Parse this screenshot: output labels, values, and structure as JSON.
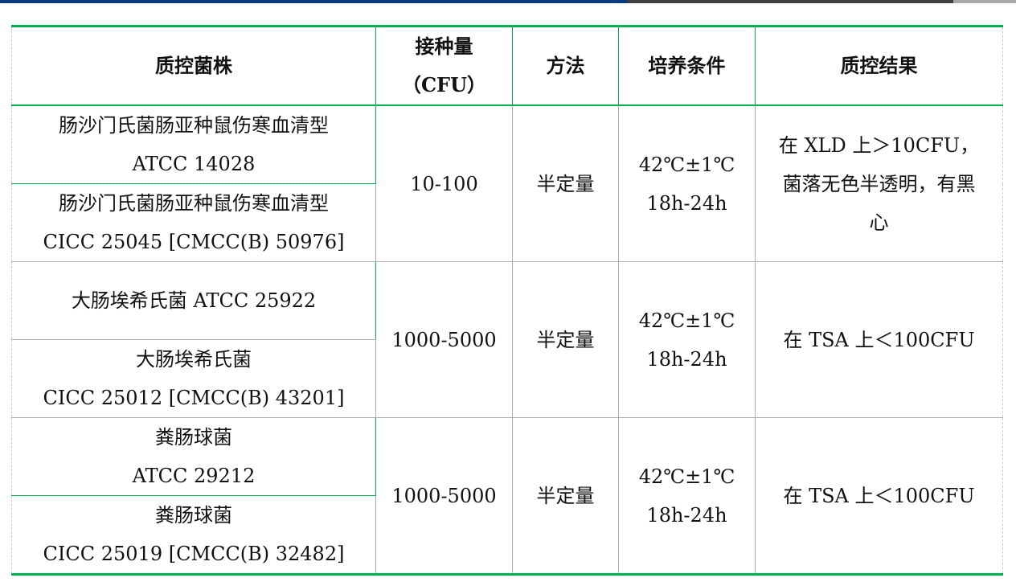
{
  "headers": [
    "质控菌株",
    "接种量",
    "（CFU）",
    "方法",
    "培养条件",
    "质控结果"
  ],
  "groups": [
    {
      "strains": [
        [
          "肠沙门氏菌肠亚种鼠伤寒血清型",
          "ATCC 14028"
        ],
        [
          "肠沙门氏菌肠亚种鼠伤寒血清型",
          "CICC 25045 [CMCC(B) 50976]"
        ]
      ],
      "inoculum": "10-100",
      "method": "半定量",
      "conditions": [
        "42℃±1℃",
        "18h-24h"
      ],
      "result": [
        "在 XLD 上＞10CFU，",
        "菌落无色半透明，有黑",
        "心"
      ]
    },
    {
      "strains": [
        [
          "大肠埃希氏菌 ATCC 25922",
          ""
        ],
        [
          "大肠埃希氏菌",
          "CICC 25012 [CMCC(B) 43201]"
        ]
      ],
      "inoculum": "1000-5000",
      "method": "半定量",
      "conditions": [
        "42℃±1℃",
        "18h-24h"
      ],
      "result": [
        "在 TSA 上＜100CFU"
      ]
    },
    {
      "strains": [
        [
          "粪肠球菌",
          "ATCC 29212"
        ],
        [
          "粪肠球菌",
          "CICC 25019 [CMCC(B) 32482]"
        ]
      ],
      "inoculum": "1000-5000",
      "method": "半定量",
      "conditions": [
        "42℃±1℃",
        "18h-24h"
      ],
      "result": [
        "在 TSA 上＜100CFU"
      ]
    }
  ],
  "colors": {
    "accent_green": "#00b050",
    "topbar_blue": "#0a3a80",
    "topbar_gray": "#404040"
  }
}
